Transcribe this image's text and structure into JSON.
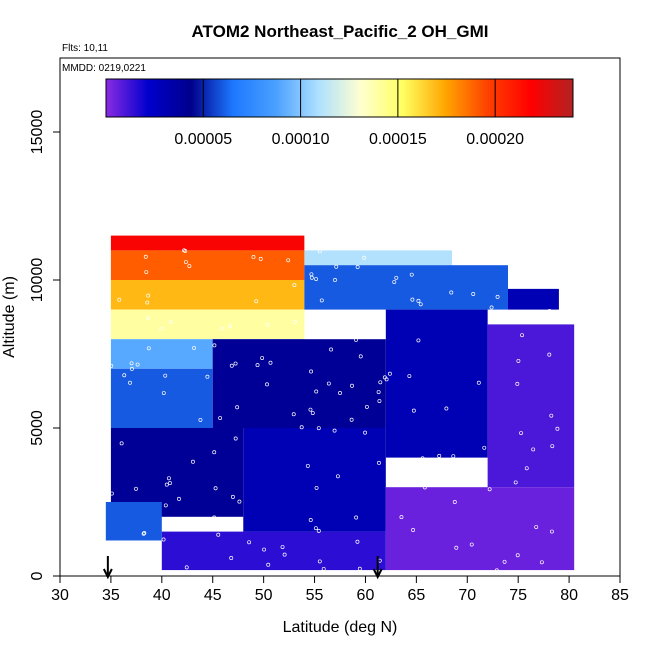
{
  "chart_data": {
    "type": "heatmap",
    "title": "ATOM2 Northeast_Pacific_2 OH_GMI",
    "annotations": [
      "Flts: 10,11",
      "MMDD: 0219,0221"
    ],
    "xlabel": "Latitude (deg N)",
    "ylabel": "Altitude (m)",
    "xlim": [
      30,
      85
    ],
    "ylim": [
      0,
      17500
    ],
    "x_ticks": [
      "30",
      "35",
      "40",
      "45",
      "50",
      "55",
      "60",
      "65",
      "70",
      "75",
      "80",
      "85"
    ],
    "y_ticks": [
      "0",
      "5000",
      "10000",
      "15000"
    ],
    "colorbar": {
      "range": [
        0,
        0.00024
      ],
      "tick_values": [
        5e-05,
        0.0001,
        0.00015,
        0.0002
      ],
      "tick_labels": [
        "0.00005",
        "0.00010",
        "0.00015",
        "0.00020"
      ],
      "colors": [
        "#8a2be2",
        "#0000cd",
        "#00008b",
        "#1e78ff",
        "#4aa0ff",
        "#aee0ff",
        "#ffffd0",
        "#ffff60",
        "#ffa500",
        "#ff4000",
        "#ff0000",
        "#b22222"
      ]
    },
    "arrows_x": [
      34.7,
      61.2
    ],
    "regions": [
      {
        "x": [
          35,
          54
        ],
        "y": [
          11000,
          11500
        ],
        "value": 0.00022
      },
      {
        "x": [
          54,
          68.5
        ],
        "y": [
          10500,
          11000
        ],
        "value": 0.00011
      },
      {
        "x": [
          35,
          54
        ],
        "y": [
          10000,
          11000
        ],
        "value": 0.00019
      },
      {
        "x": [
          35,
          54
        ],
        "y": [
          9000,
          10000
        ],
        "value": 0.00017
      },
      {
        "x": [
          35,
          54
        ],
        "y": [
          8000,
          9000
        ],
        "value": 0.00014
      },
      {
        "x": [
          35,
          54
        ],
        "y": [
          7000,
          8000
        ],
        "value": 9e-05
      },
      {
        "x": [
          54,
          74
        ],
        "y": [
          9000,
          10500
        ],
        "value": 6e-05
      },
      {
        "x": [
          74,
          79
        ],
        "y": [
          9000,
          9700
        ],
        "value": 3e-05
      },
      {
        "x": [
          35,
          45
        ],
        "y": [
          5000,
          7000
        ],
        "value": 6e-05
      },
      {
        "x": [
          45,
          62
        ],
        "y": [
          5000,
          8000
        ],
        "value": 4e-05
      },
      {
        "x": [
          62,
          72
        ],
        "y": [
          4000,
          9000
        ],
        "value": 3e-05
      },
      {
        "x": [
          72,
          80.5
        ],
        "y": [
          3000,
          8500
        ],
        "value": 1e-05
      },
      {
        "x": [
          35,
          48
        ],
        "y": [
          2000,
          5000
        ],
        "value": 4e-05
      },
      {
        "x": [
          48,
          62
        ],
        "y": [
          1500,
          5000
        ],
        "value": 3e-05
      },
      {
        "x": [
          62,
          80.5
        ],
        "y": [
          200,
          3000
        ],
        "value": 5e-06
      },
      {
        "x": [
          34.5,
          40
        ],
        "y": [
          1200,
          2500
        ],
        "value": 6e-05
      },
      {
        "x": [
          40,
          62
        ],
        "y": [
          200,
          1500
        ],
        "value": 1.5e-05
      }
    ],
    "grid": false,
    "legend": "top"
  }
}
